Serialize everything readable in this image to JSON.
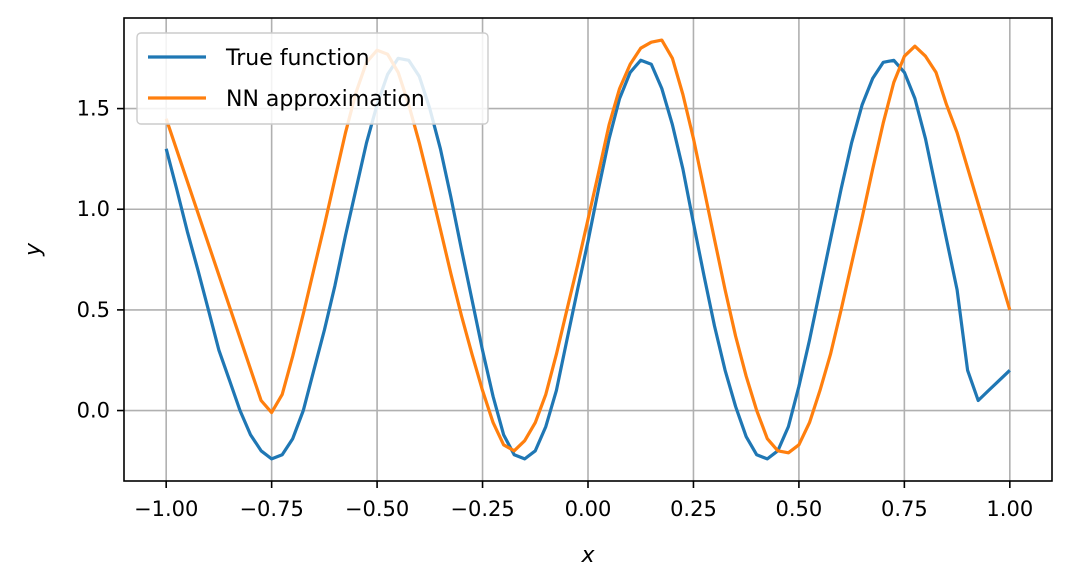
{
  "chart_data": {
    "type": "line",
    "title": "",
    "xlabel": "x",
    "ylabel": "y",
    "xlim": [
      -1.1,
      1.1
    ],
    "ylim": [
      -0.35,
      1.95
    ],
    "grid": true,
    "legend_position": "top-left",
    "x_ticks": [
      -1.0,
      -0.75,
      -0.5,
      -0.25,
      0.0,
      0.25,
      0.5,
      0.75,
      1.0
    ],
    "x_tick_labels": [
      "−1.00",
      "−0.75",
      "−0.50",
      "−0.25",
      "0.00",
      "0.25",
      "0.50",
      "0.75",
      "1.00"
    ],
    "y_ticks": [
      0.0,
      0.5,
      1.0,
      1.5
    ],
    "y_tick_labels": [
      "0.0",
      "0.5",
      "1.0",
      "1.5"
    ],
    "series": [
      {
        "name": "True function",
        "color": "#1f77b4",
        "x": [
          -1.0,
          -0.975,
          -0.95,
          -0.925,
          -0.9,
          -0.875,
          -0.85,
          -0.825,
          -0.8,
          -0.775,
          -0.75,
          -0.725,
          -0.7,
          -0.675,
          -0.65,
          -0.625,
          -0.6,
          -0.575,
          -0.55,
          -0.525,
          -0.5,
          -0.475,
          -0.45,
          -0.425,
          -0.4,
          -0.375,
          -0.35,
          -0.325,
          -0.3,
          -0.275,
          -0.25,
          -0.225,
          -0.2,
          -0.175,
          -0.15,
          -0.125,
          -0.1,
          -0.075,
          -0.05,
          -0.025,
          0.0,
          0.025,
          0.05,
          0.075,
          0.1,
          0.125,
          0.15,
          0.175,
          0.2,
          0.225,
          0.25,
          0.275,
          0.3,
          0.325,
          0.35,
          0.375,
          0.4,
          0.425,
          0.45,
          0.475,
          0.5,
          0.525,
          0.55,
          0.575,
          0.6,
          0.625,
          0.65,
          0.675,
          0.7,
          0.725,
          0.75,
          0.775,
          0.8,
          0.825,
          0.85,
          0.875,
          0.9,
          0.925,
          0.95,
          0.975,
          1.0
        ],
        "y": [
          1.3,
          1.1,
          0.89,
          0.7,
          0.5,
          0.3,
          0.15,
          0.0,
          -0.12,
          -0.2,
          -0.24,
          -0.22,
          -0.14,
          0.0,
          0.2,
          0.4,
          0.62,
          0.87,
          1.1,
          1.33,
          1.52,
          1.67,
          1.75,
          1.74,
          1.66,
          1.5,
          1.3,
          1.06,
          0.8,
          0.55,
          0.3,
          0.07,
          -0.12,
          -0.22,
          -0.24,
          -0.2,
          -0.08,
          0.1,
          0.35,
          0.6,
          0.84,
          1.1,
          1.35,
          1.55,
          1.68,
          1.74,
          1.72,
          1.6,
          1.42,
          1.2,
          0.93,
          0.67,
          0.42,
          0.2,
          0.02,
          -0.13,
          -0.22,
          -0.24,
          -0.2,
          -0.08,
          0.12,
          0.35,
          0.6,
          0.85,
          1.1,
          1.33,
          1.52,
          1.65,
          1.73,
          1.74,
          1.68,
          1.55,
          1.35,
          1.1,
          0.85,
          0.6,
          0.2,
          0.05,
          0.1,
          0.15,
          0.2
        ]
      },
      {
        "name": "NN approximation",
        "color": "#ff7f0e",
        "x": [
          -1.0,
          -0.775,
          -0.75,
          -0.725,
          -0.7,
          -0.675,
          -0.65,
          -0.625,
          -0.6,
          -0.575,
          -0.55,
          -0.525,
          -0.5,
          -0.475,
          -0.45,
          -0.425,
          -0.4,
          -0.375,
          -0.35,
          -0.325,
          -0.3,
          -0.275,
          -0.25,
          -0.225,
          -0.2,
          -0.175,
          -0.15,
          -0.125,
          -0.1,
          -0.075,
          -0.05,
          -0.025,
          0.0,
          0.025,
          0.05,
          0.075,
          0.1,
          0.125,
          0.15,
          0.175,
          0.2,
          0.225,
          0.25,
          0.275,
          0.3,
          0.325,
          0.35,
          0.375,
          0.4,
          0.425,
          0.45,
          0.475,
          0.5,
          0.525,
          0.55,
          0.575,
          0.6,
          0.625,
          0.65,
          0.675,
          0.7,
          0.725,
          0.75,
          0.775,
          0.8,
          0.825,
          0.85,
          0.875,
          1.0
        ],
        "y": [
          1.45,
          0.05,
          -0.01,
          0.08,
          0.27,
          0.48,
          0.7,
          0.92,
          1.15,
          1.38,
          1.58,
          1.73,
          1.79,
          1.77,
          1.68,
          1.52,
          1.33,
          1.12,
          0.9,
          0.68,
          0.47,
          0.28,
          0.1,
          -0.06,
          -0.17,
          -0.2,
          -0.15,
          -0.06,
          0.08,
          0.28,
          0.5,
          0.72,
          0.95,
          1.18,
          1.42,
          1.6,
          1.72,
          1.8,
          1.83,
          1.84,
          1.75,
          1.57,
          1.35,
          1.1,
          0.85,
          0.6,
          0.37,
          0.17,
          0.0,
          -0.14,
          -0.2,
          -0.21,
          -0.17,
          -0.06,
          0.1,
          0.28,
          0.5,
          0.73,
          0.96,
          1.2,
          1.43,
          1.63,
          1.76,
          1.81,
          1.76,
          1.68,
          1.52,
          1.38,
          0.5
        ]
      }
    ]
  }
}
